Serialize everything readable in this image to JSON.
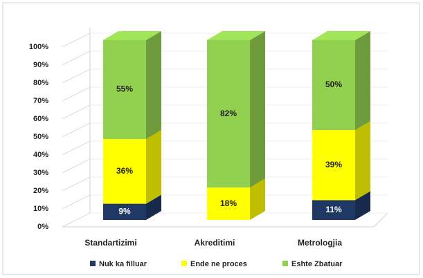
{
  "chart_data": {
    "type": "bar3d_stacked",
    "categories": [
      "Standartizimi",
      "Akreditimi",
      "Metrologjia"
    ],
    "series": [
      {
        "name": "Nuk ka filluar",
        "color": "#1f3864",
        "values": [
          9,
          0,
          11
        ],
        "value_labels": [
          "9%",
          null,
          "11%"
        ]
      },
      {
        "name": "Ende ne proces",
        "color": "#ffff00",
        "values": [
          36,
          18,
          39
        ],
        "value_labels": [
          "36%",
          "18%",
          "39%"
        ]
      },
      {
        "name": "Eshte Zbatuar",
        "color": "#92d050",
        "values": [
          55,
          82,
          50
        ],
        "value_labels": [
          "55%",
          "82%",
          "50%"
        ]
      }
    ],
    "ylim": [
      0,
      100
    ],
    "yticks": [
      {
        "value": 0,
        "label": "0%"
      },
      {
        "value": 10,
        "label": "10%"
      },
      {
        "value": 20,
        "label": "20%"
      },
      {
        "value": 30,
        "label": "30%"
      },
      {
        "value": 40,
        "label": "40%"
      },
      {
        "value": 50,
        "label": "50%"
      },
      {
        "value": 60,
        "label": "60%"
      },
      {
        "value": 70,
        "label": "70%"
      },
      {
        "value": 80,
        "label": "80%"
      },
      {
        "value": 90,
        "label": "90%"
      },
      {
        "value": 100,
        "label": "100%"
      }
    ],
    "grid": true,
    "legend": "bottom"
  }
}
